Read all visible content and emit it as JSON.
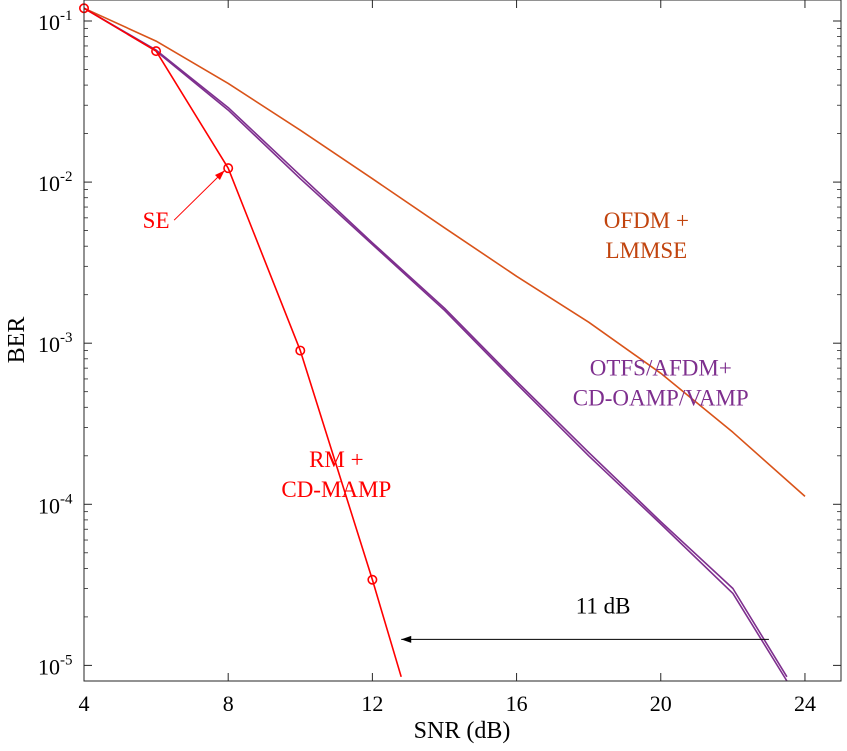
{
  "chart_data": {
    "type": "line",
    "xlabel": "SNR (dB)",
    "ylabel": "BER",
    "y_scale": "log",
    "xlim": [
      4,
      25
    ],
    "ylim": [
      8e-06,
      0.135
    ],
    "xticks": [
      4,
      8,
      12,
      16,
      20,
      24
    ],
    "yticks": [
      {
        "value": 0.1,
        "base": "10",
        "exp": "-1"
      },
      {
        "value": 0.01,
        "base": "10",
        "exp": "-2"
      },
      {
        "value": 0.001,
        "base": "10",
        "exp": "-3"
      },
      {
        "value": 0.0001,
        "base": "10",
        "exp": "-4"
      },
      {
        "value": 1e-05,
        "base": "10",
        "exp": "-5"
      }
    ],
    "series": [
      {
        "name": "OFDM + LMMSE",
        "color": "#d95319",
        "x": [
          4,
          6,
          8,
          10,
          12,
          14,
          16,
          18,
          20,
          22,
          24
        ],
        "y": [
          0.12,
          0.075,
          0.041,
          0.021,
          0.0105,
          0.0052,
          0.0026,
          0.00135,
          0.00065,
          0.00028,
          0.000112
        ]
      },
      {
        "name": "OTFS + CD-OAMP",
        "color": "#7e2f8e",
        "x": [
          4,
          6,
          8,
          10,
          12,
          14,
          16,
          18,
          20,
          22,
          23.5
        ],
        "y": [
          0.12,
          0.065,
          0.028,
          0.0105,
          0.0041,
          0.0016,
          0.00056,
          0.0002,
          7.55e-05,
          2.8e-05,
          8e-06
        ]
      },
      {
        "name": "AFDM + CD-VAMP",
        "color": "#7e2f8e",
        "x": [
          4,
          6,
          8,
          10,
          12,
          14,
          16,
          18,
          20,
          22,
          23.5
        ],
        "y": [
          0.12,
          0.066,
          0.029,
          0.011,
          0.0042,
          0.00165,
          0.00058,
          0.00021,
          7.8e-05,
          3e-05,
          8.5e-06
        ]
      },
      {
        "name": "RM + CD-MAMP",
        "color": "#ff0000",
        "x": [
          4,
          6,
          8,
          10,
          12,
          12.8
        ],
        "y": [
          0.12,
          0.065,
          0.0122,
          0.0009,
          3.4e-05,
          8.5e-06
        ]
      },
      {
        "name": "SE",
        "color": "#ff0000",
        "marker": "circle",
        "x": [
          4,
          6,
          8,
          10,
          12
        ],
        "y": [
          0.12,
          0.065,
          0.0122,
          0.0009,
          3.4e-05
        ]
      }
    ],
    "annotations": [
      {
        "id": "ofdm",
        "lines": [
          "OFDM +",
          "LMMSE"
        ],
        "x": 19.6,
        "y": 0.0052,
        "color": "#c1440e"
      },
      {
        "id": "otfs",
        "lines": [
          "OTFS/AFDM+",
          "CD-OAMP/VAMP"
        ],
        "x": 20.0,
        "y": 0.00063,
        "color": "#7e2f8e"
      },
      {
        "id": "rm",
        "lines": [
          "RM +",
          "CD-MAMP"
        ],
        "x": 11.0,
        "y": 0.00017,
        "color": "#ff0000"
      },
      {
        "id": "se",
        "lines": [
          "SE"
        ],
        "x": 6.0,
        "y": 0.0052,
        "color": "#ff0000"
      },
      {
        "id": "gap",
        "lines": [
          "11 dB"
        ],
        "x": 18.4,
        "y": 2.1e-05,
        "color": "#000000"
      }
    ],
    "arrows": [
      {
        "id": "se-arrow",
        "from": [
          6.5,
          0.0058
        ],
        "to": [
          7.9,
          0.0118
        ],
        "color": "#ff0000"
      },
      {
        "id": "gap-arrow",
        "from": [
          23.0,
          1.45e-05
        ],
        "to": [
          12.8,
          1.45e-05
        ],
        "color": "#000000"
      }
    ]
  }
}
